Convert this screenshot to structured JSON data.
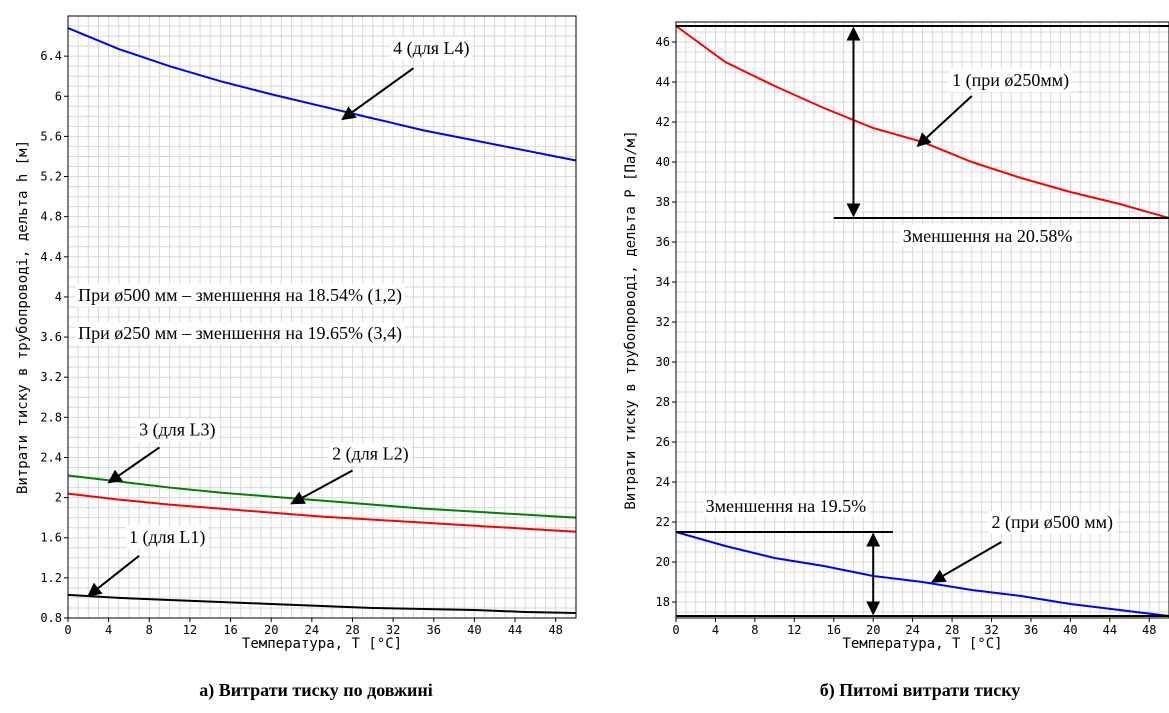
{
  "chart_data": [
    {
      "type": "line",
      "caption": "а) Витрати тиску по довжині",
      "xlabel": "Температура, T [°C]",
      "ylabel": "Витрати тиску в трубопроводі, дельта h [м]",
      "xlim": [
        0,
        50
      ],
      "ylim": [
        0.8,
        6.8
      ],
      "x_ticks": [
        "0",
        "4",
        "8",
        "12",
        "16",
        "20",
        "24",
        "28",
        "32",
        "36",
        "40",
        "44",
        "48"
      ],
      "y_ticks": [
        "0.8",
        "1.2",
        "1.6",
        "2",
        "2.4",
        "2.8",
        "3.2",
        "3.6",
        "4",
        "4.4",
        "4.8",
        "5.2",
        "5.6",
        "6",
        "6.4"
      ],
      "grid": true,
      "series": [
        {
          "name": "4 (для L4)",
          "color": "#0000ff",
          "x": [
            0,
            5,
            10,
            15,
            20,
            25,
            30,
            35,
            40,
            45,
            50
          ],
          "y": [
            6.68,
            6.47,
            6.3,
            6.15,
            6.02,
            5.9,
            5.78,
            5.66,
            5.56,
            5.46,
            5.36
          ]
        },
        {
          "name": "3 (для L3)",
          "color": "#008000",
          "x": [
            0,
            5,
            10,
            15,
            20,
            25,
            30,
            35,
            40,
            45,
            50
          ],
          "y": [
            2.22,
            2.16,
            2.1,
            2.05,
            2.01,
            1.97,
            1.93,
            1.89,
            1.86,
            1.83,
            1.8
          ]
        },
        {
          "name": "2 (для L2)",
          "color": "#ff0000",
          "x": [
            0,
            5,
            10,
            15,
            20,
            25,
            30,
            35,
            40,
            45,
            50
          ],
          "y": [
            2.04,
            1.98,
            1.93,
            1.89,
            1.85,
            1.81,
            1.78,
            1.75,
            1.72,
            1.69,
            1.66
          ]
        },
        {
          "name": "1 (для L1)",
          "color": "#000000",
          "x": [
            0,
            5,
            10,
            15,
            20,
            25,
            30,
            35,
            40,
            45,
            50
          ],
          "y": [
            1.03,
            1.0,
            0.98,
            0.96,
            0.94,
            0.92,
            0.9,
            0.89,
            0.88,
            0.86,
            0.85
          ]
        }
      ],
      "annotations": [
        {
          "text": "4 (для L4)",
          "x": 32,
          "y": 6.42
        },
        {
          "text": "3 (для L3)",
          "x": 7,
          "y": 2.62
        },
        {
          "text": "2 (для L2)",
          "x": 26,
          "y": 2.38
        },
        {
          "text": "1 (для L1)",
          "x": 6,
          "y": 1.55
        },
        {
          "text": "При ø500 мм – зменшення на 18.54% (1,2)",
          "x": 1,
          "y": 3.96
        },
        {
          "text": "При ø250 мм – зменшення на 19.65% (3,4)",
          "x": 1,
          "y": 3.58
        }
      ],
      "arrows": [
        {
          "from": [
            34,
            6.28
          ],
          "to": [
            27,
            5.77
          ]
        },
        {
          "from": [
            9,
            2.5
          ],
          "to": [
            4,
            2.15
          ]
        },
        {
          "from": [
            28,
            2.27
          ],
          "to": [
            22,
            1.94
          ]
        },
        {
          "from": [
            7,
            1.42
          ],
          "to": [
            2,
            1.02
          ]
        }
      ]
    },
    {
      "type": "line",
      "caption": "б) Питомі витрати тиску",
      "xlabel": "Температура, T [°C]",
      "ylabel": "Витрати тиску в трубопроводі, дельта P [Па/м]",
      "xlim": [
        0,
        50
      ],
      "ylim": [
        17.2,
        47
      ],
      "x_ticks": [
        "0",
        "4",
        "8",
        "12",
        "16",
        "20",
        "24",
        "28",
        "32",
        "36",
        "40",
        "44",
        "48"
      ],
      "y_ticks": [
        "18",
        "20",
        "22",
        "24",
        "26",
        "28",
        "30",
        "32",
        "34",
        "36",
        "38",
        "40",
        "42",
        "44",
        "46"
      ],
      "grid": true,
      "series": [
        {
          "name": "1 (при ø250мм)",
          "color": "#ff0000",
          "x": [
            0,
            5,
            10,
            15,
            20,
            25,
            30,
            35,
            40,
            45,
            50
          ],
          "y": [
            46.8,
            45.0,
            43.8,
            42.7,
            41.7,
            41.0,
            40.0,
            39.2,
            38.5,
            37.9,
            37.2
          ]
        },
        {
          "name": "2 (при ø500 мм)",
          "color": "#0000ff",
          "x": [
            0,
            5,
            10,
            15,
            20,
            25,
            30,
            35,
            40,
            45,
            50
          ],
          "y": [
            21.5,
            20.8,
            20.2,
            19.8,
            19.3,
            19.0,
            18.6,
            18.3,
            17.9,
            17.6,
            17.3
          ]
        }
      ],
      "annotations": [
        {
          "text": "1 (при ø250мм)",
          "x": 28,
          "y": 43.8
        },
        {
          "text": "Зменшення на 20.58%",
          "x": 23,
          "y": 36.0
        },
        {
          "text": "Зменшення на 19.5%",
          "x": 3,
          "y": 22.5
        },
        {
          "text": "2 (при ø500 мм)",
          "x": 32,
          "y": 21.7
        }
      ],
      "markers": [
        {
          "hline_y": 46.8,
          "x_from": 0,
          "x_to": 50
        },
        {
          "hline_y": 37.2,
          "x_from": 16,
          "x_to": 50
        },
        {
          "hline_y": 21.5,
          "x_from": 0,
          "x_to": 22
        },
        {
          "hline_y": 17.3,
          "x_from": 0,
          "x_to": 50
        }
      ],
      "double_arrows": [
        {
          "x": 18,
          "y_from": 46.8,
          "y_to": 37.2
        },
        {
          "x": 20,
          "y_from": 21.5,
          "y_to": 17.3
        }
      ],
      "arrows": [
        {
          "from": [
            30,
            43.3
          ],
          "to": [
            24.5,
            40.8
          ]
        },
        {
          "from": [
            33,
            21.0
          ],
          "to": [
            26,
            19.0
          ]
        }
      ]
    }
  ]
}
